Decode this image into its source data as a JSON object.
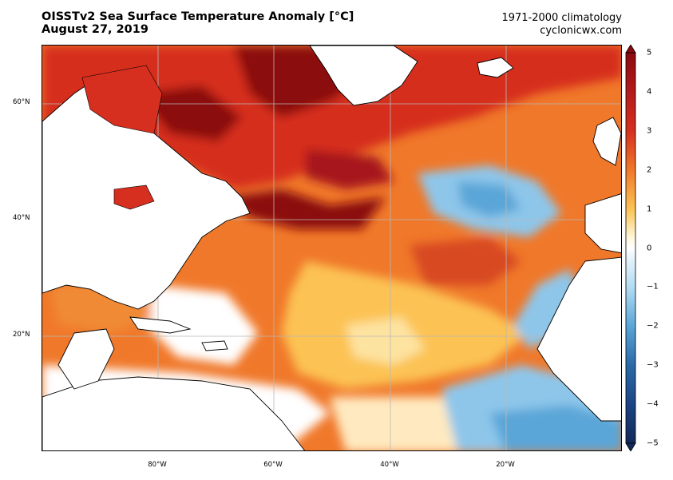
{
  "header": {
    "title_line1": "OISSTv2 Sea Surface Temperature Anomaly [°C]",
    "title_line2": "August 27, 2019",
    "climatology": "1971-2000 climatology",
    "source": "cyclonicwx.com"
  },
  "map": {
    "region": "North Atlantic",
    "lat_labels": [
      "60°N",
      "40°N",
      "20°N"
    ],
    "lon_labels": [
      "80°W",
      "60°W",
      "40°W",
      "20°W"
    ],
    "grid": true,
    "land_color": "#ffffff",
    "coastline_color": "#000000"
  },
  "colorbar": {
    "ticks": [
      "5",
      "4",
      "3",
      "2",
      "1",
      "0",
      "−1",
      "−2",
      "−3",
      "−4",
      "−5"
    ],
    "min": -5,
    "max": 5,
    "extend": "both",
    "colors": {
      "strong_warm": "#8b0a0f",
      "warm": "#d62f1f",
      "mid_warm": "#f0782a",
      "light_warm": "#fcc253",
      "neutral": "#ffffff",
      "light_cool": "#b3dcf2",
      "mid_cool": "#5aa6d8",
      "cool": "#2b6aa8",
      "strong_cool": "#13295a"
    }
  }
}
